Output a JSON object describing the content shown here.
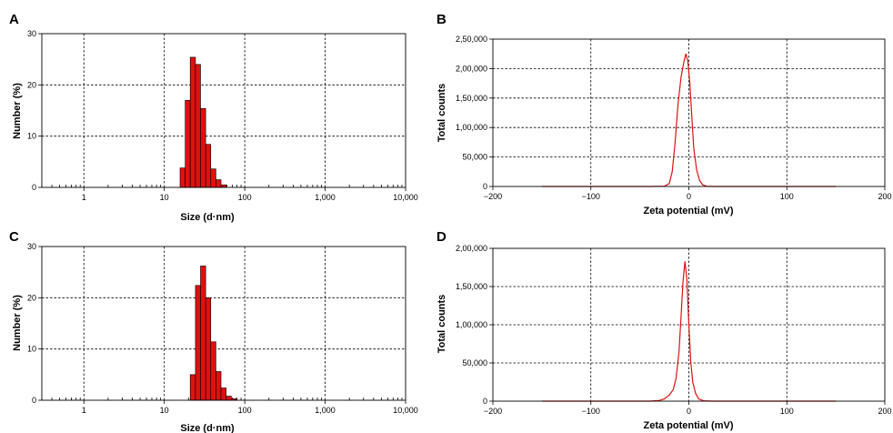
{
  "chart_data": [
    {
      "panel": "A",
      "type": "bar",
      "xlabel": "Size (d·nm)",
      "ylabel": "Number (%)",
      "xscale": "log",
      "xlim": [
        0.3,
        10000
      ],
      "ylim": [
        0,
        30
      ],
      "xticks": [
        1,
        10,
        100,
        1000,
        10000
      ],
      "xtick_labels": [
        "1",
        "10",
        "100",
        "1,000",
        "10,000"
      ],
      "yticks": [
        0,
        10,
        20,
        30
      ],
      "ytick_labels": [
        "0",
        "10",
        "20",
        "30"
      ],
      "grid": true,
      "bins": [
        {
          "x0": 15.7,
          "x1": 18.2,
          "value": 3.8
        },
        {
          "x0": 18.2,
          "x1": 21.0,
          "value": 17.0
        },
        {
          "x0": 21.0,
          "x1": 24.4,
          "value": 25.4
        },
        {
          "x0": 24.4,
          "x1": 28.2,
          "value": 24.0
        },
        {
          "x0": 28.2,
          "x1": 32.7,
          "value": 15.4
        },
        {
          "x0": 32.7,
          "x1": 37.8,
          "value": 8.4
        },
        {
          "x0": 37.8,
          "x1": 43.8,
          "value": 3.6
        },
        {
          "x0": 43.8,
          "x1": 50.7,
          "value": 1.5
        },
        {
          "x0": 50.7,
          "x1": 58.7,
          "value": 0.5
        }
      ]
    },
    {
      "panel": "B",
      "type": "line",
      "xlabel": "Zeta potential (mV)",
      "ylabel": "Total counts",
      "xlim": [
        -200,
        200
      ],
      "ylim": [
        0,
        250000
      ],
      "xticks": [
        -200,
        -100,
        0,
        100,
        200
      ],
      "xtick_labels": [
        "−200",
        "−100",
        "0",
        "100",
        "200"
      ],
      "yticks": [
        0,
        50000,
        100000,
        150000,
        200000,
        250000
      ],
      "ytick_labels": [
        "0",
        "50,000",
        "1,00,000",
        "1,50,000",
        "2,00,000",
        "2,50,000"
      ],
      "grid": true,
      "series": [
        {
          "x": [
            -150,
            -40,
            -25,
            -20,
            -17,
            -14,
            -11,
            -8,
            -5,
            -3,
            -1,
            1,
            3,
            5,
            8,
            11,
            14,
            18,
            25,
            40,
            150
          ],
          "y": [
            0,
            0,
            500,
            5000,
            25000,
            75000,
            140000,
            185000,
            212000,
            225000,
            212000,
            175000,
            120000,
            65000,
            28000,
            10000,
            3000,
            500,
            0,
            0,
            0
          ]
        }
      ]
    },
    {
      "panel": "C",
      "type": "bar",
      "xlabel": "Size (d·nm)",
      "ylabel": "Number (%)",
      "xscale": "log",
      "xlim": [
        0.3,
        10000
      ],
      "ylim": [
        0,
        30
      ],
      "xticks": [
        1,
        10,
        100,
        1000,
        10000
      ],
      "xtick_labels": [
        "1",
        "10",
        "100",
        "1,000",
        "10,000"
      ],
      "yticks": [
        0,
        10,
        20,
        30
      ],
      "ytick_labels": [
        "0",
        "10",
        "20",
        "30"
      ],
      "grid": true,
      "bins": [
        {
          "x0": 21.0,
          "x1": 24.4,
          "value": 5.0
        },
        {
          "x0": 24.4,
          "x1": 28.2,
          "value": 22.4
        },
        {
          "x0": 28.2,
          "x1": 32.7,
          "value": 26.2
        },
        {
          "x0": 32.7,
          "x1": 37.8,
          "value": 20.0
        },
        {
          "x0": 37.8,
          "x1": 43.8,
          "value": 11.4
        },
        {
          "x0": 43.8,
          "x1": 50.7,
          "value": 5.6
        },
        {
          "x0": 50.7,
          "x1": 58.7,
          "value": 2.4
        },
        {
          "x0": 58.7,
          "x1": 68.1,
          "value": 0.8
        },
        {
          "x0": 68.1,
          "x1": 78.8,
          "value": 0.3
        }
      ]
    },
    {
      "panel": "D",
      "type": "line",
      "xlabel": "Zeta potential (mV)",
      "ylabel": "Total counts",
      "xlim": [
        -200,
        200
      ],
      "ylim": [
        0,
        200000
      ],
      "xticks": [
        -200,
        -100,
        0,
        100,
        200
      ],
      "xtick_labels": [
        "−200",
        "−100",
        "0",
        "100",
        "200"
      ],
      "yticks": [
        0,
        50000,
        100000,
        150000,
        200000
      ],
      "ytick_labels": [
        "0",
        "50,000",
        "1,00,000",
        "1,50,000",
        "2,00,000"
      ],
      "grid": true,
      "series": [
        {
          "x": [
            -150,
            -40,
            -30,
            -25,
            -20,
            -16,
            -13,
            -10,
            -8,
            -6,
            -4,
            -2,
            0,
            2,
            4,
            7,
            10,
            15,
            25,
            150
          ],
          "y": [
            0,
            0,
            1000,
            3000,
            8000,
            15000,
            30000,
            65000,
            110000,
            155000,
            183000,
            160000,
            100000,
            50000,
            25000,
            10000,
            3000,
            500,
            0,
            0
          ]
        }
      ]
    }
  ]
}
